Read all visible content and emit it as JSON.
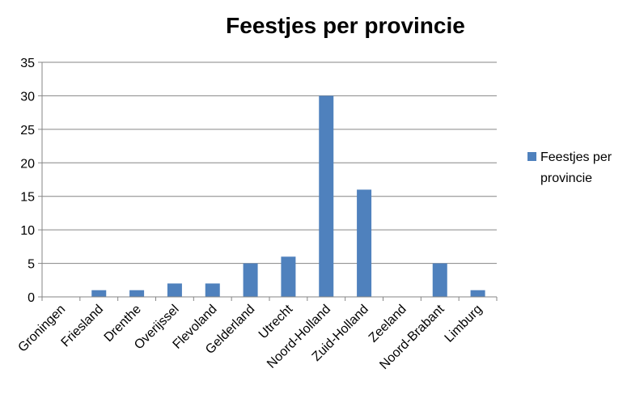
{
  "chart_data": {
    "type": "bar",
    "title": "Feestjes per provincie",
    "xlabel": "",
    "ylabel": "",
    "categories": [
      "Groningen",
      "Friesland",
      "Drenthe",
      "Overijssel",
      "Flevoland",
      "Gelderland",
      "Utrecht",
      "Noord-Holland",
      "Zuid-Holland",
      "Zeeland",
      "Noord-Brabant",
      "Limburg"
    ],
    "series": [
      {
        "name": "Feestjes per provincie",
        "legend_lines": [
          "Feestjes per",
          "provincie"
        ],
        "color": "#4F81BD",
        "values": [
          0,
          1,
          1,
          2,
          2,
          5,
          6,
          30,
          16,
          0,
          5,
          1
        ]
      }
    ],
    "ylim": [
      0,
      35
    ],
    "yticks": [
      "0",
      "5",
      "10",
      "15",
      "20",
      "25",
      "30",
      "35"
    ],
    "grid": true,
    "legend_position": "right"
  }
}
